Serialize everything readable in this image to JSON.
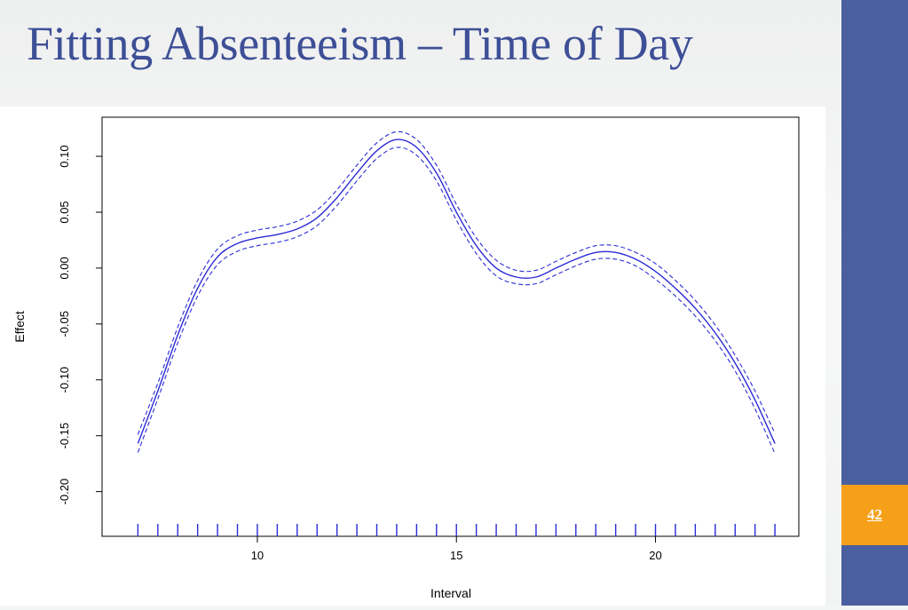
{
  "slide": {
    "title": "Fitting Absenteeism – Time of Day",
    "page_number": "42",
    "colors": {
      "title": "#3d4f96",
      "sidebar": "#4a5fa0",
      "page_badge": "#f6a01a",
      "series": "#2b2bd6"
    }
  },
  "chart_data": {
    "type": "line",
    "title": "",
    "xlabel": "Interval",
    "ylabel": "Effect",
    "xlim": [
      6.1,
      23.6
    ],
    "ylim": [
      -0.24,
      0.135
    ],
    "x_ticks": [
      10,
      15,
      20
    ],
    "y_ticks": [
      -0.2,
      -0.15,
      -0.1,
      -0.05,
      0.0,
      0.05,
      0.1
    ],
    "y_tick_labels": [
      "-0.20",
      "-0.15",
      "-0.10",
      "-0.05",
      "0.00",
      "0.05",
      "0.10"
    ],
    "grid": false,
    "rug_x": [
      7.0,
      7.5,
      8.0,
      8.5,
      9.0,
      9.5,
      10.0,
      10.5,
      11.0,
      11.5,
      12.0,
      12.5,
      13.0,
      13.5,
      14.0,
      14.5,
      15.0,
      15.5,
      16.0,
      16.5,
      17.0,
      17.5,
      18.0,
      18.5,
      19.0,
      19.5,
      20.0,
      20.5,
      21.0,
      21.5,
      22.0,
      22.5,
      23.0
    ],
    "series": [
      {
        "style": "solid",
        "x": [
          7.0,
          7.5,
          8.0,
          8.5,
          9.0,
          9.5,
          10.0,
          10.5,
          11.0,
          11.5,
          12.0,
          12.5,
          13.0,
          13.5,
          14.0,
          14.5,
          15.0,
          15.5,
          16.0,
          16.5,
          17.0,
          17.5,
          18.0,
          18.5,
          19.0,
          19.5,
          20.0,
          20.5,
          21.0,
          21.5,
          22.0,
          22.5,
          23.0
        ],
        "values": [
          -0.157,
          -0.11,
          -0.06,
          -0.018,
          0.01,
          0.022,
          0.027,
          0.03,
          0.035,
          0.045,
          0.063,
          0.085,
          0.105,
          0.115,
          0.108,
          0.085,
          0.05,
          0.02,
          0.0,
          -0.008,
          -0.008,
          0.0,
          0.008,
          0.014,
          0.014,
          0.008,
          -0.003,
          -0.018,
          -0.036,
          -0.058,
          -0.085,
          -0.118,
          -0.157
        ]
      },
      {
        "style": "dashed",
        "x": [
          7.0,
          7.5,
          8.0,
          8.5,
          9.0,
          9.5,
          10.0,
          10.5,
          11.0,
          11.5,
          12.0,
          12.5,
          13.0,
          13.5,
          14.0,
          14.5,
          15.0,
          15.5,
          16.0,
          16.5,
          17.0,
          17.5,
          18.0,
          18.5,
          19.0,
          19.5,
          20.0,
          20.5,
          21.0,
          21.5,
          22.0,
          22.5,
          23.0
        ],
        "values": [
          -0.149,
          -0.103,
          -0.053,
          -0.011,
          0.017,
          0.029,
          0.034,
          0.037,
          0.042,
          0.052,
          0.07,
          0.092,
          0.112,
          0.122,
          0.115,
          0.092,
          0.057,
          0.027,
          0.007,
          -0.002,
          -0.002,
          0.006,
          0.014,
          0.02,
          0.02,
          0.014,
          0.004,
          -0.011,
          -0.029,
          -0.051,
          -0.078,
          -0.11,
          -0.148
        ]
      },
      {
        "style": "dashed",
        "x": [
          7.0,
          7.5,
          8.0,
          8.5,
          9.0,
          9.5,
          10.0,
          10.5,
          11.0,
          11.5,
          12.0,
          12.5,
          13.0,
          13.5,
          14.0,
          14.5,
          15.0,
          15.5,
          16.0,
          16.5,
          17.0,
          17.5,
          18.0,
          18.5,
          19.0,
          19.5,
          20.0,
          20.5,
          21.0,
          21.5,
          22.0,
          22.5,
          23.0
        ],
        "values": [
          -0.165,
          -0.117,
          -0.067,
          -0.025,
          0.003,
          0.015,
          0.02,
          0.023,
          0.028,
          0.038,
          0.056,
          0.078,
          0.098,
          0.108,
          0.101,
          0.078,
          0.043,
          0.013,
          -0.007,
          -0.014,
          -0.014,
          -0.006,
          0.002,
          0.008,
          0.008,
          0.002,
          -0.01,
          -0.025,
          -0.043,
          -0.065,
          -0.092,
          -0.126,
          -0.166
        ]
      }
    ]
  }
}
